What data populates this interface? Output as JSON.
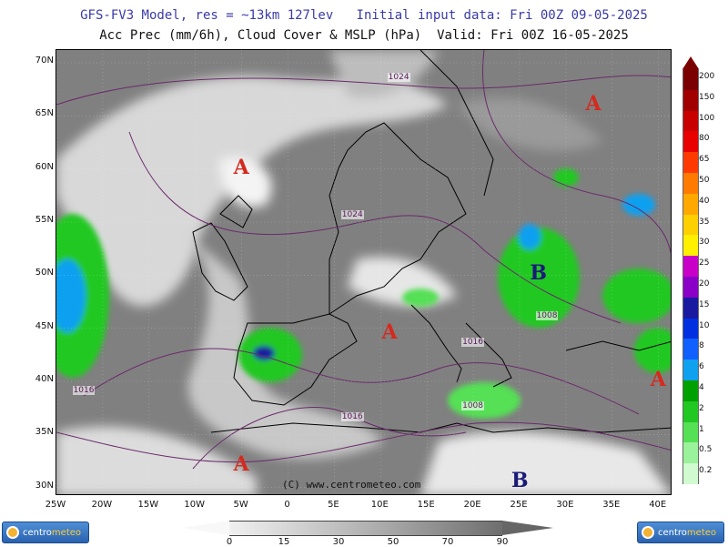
{
  "header": {
    "line1": "GFS-FV3 Model, res = ~13km 127lev   Initial input data: Fri 00Z 09-05-2025",
    "line2": "Acc Prec (mm/6h), Cloud Cover & MSLP (hPa)  Valid: Fri 00Z 16-05-2025"
  },
  "map": {
    "lat_labels": [
      "70N",
      "65N",
      "60N",
      "55N",
      "50N",
      "45N",
      "40N",
      "35N",
      "30N"
    ],
    "lon_labels": [
      "25W",
      "20W",
      "15W",
      "10W",
      "5W",
      "0",
      "5E",
      "10E",
      "15E",
      "20E",
      "25E",
      "30E",
      "35E",
      "40E"
    ],
    "copyright": "(C) www.centrometeo.com",
    "pressure_centers": [
      {
        "letter": "A",
        "type": "high",
        "lat": 66,
        "lon": 33
      },
      {
        "letter": "A",
        "type": "high",
        "lat": 60,
        "lon": -5
      },
      {
        "letter": "A",
        "type": "high",
        "lat": 44.5,
        "lon": 11
      },
      {
        "letter": "A",
        "type": "high",
        "lat": 40,
        "lon": 40
      },
      {
        "letter": "A",
        "type": "high",
        "lat": 32,
        "lon": -5
      },
      {
        "letter": "B",
        "type": "low",
        "lat": 50,
        "lon": 27
      },
      {
        "letter": "B",
        "type": "low",
        "lat": 30.5,
        "lon": 25
      }
    ],
    "isobar_labels": [
      {
        "text": "1024",
        "lat": 68.5,
        "lon": 12
      },
      {
        "text": "1024",
        "lat": 55.5,
        "lon": 7
      },
      {
        "text": "1008",
        "lat": 46,
        "lon": 28
      },
      {
        "text": "1016",
        "lat": 43.5,
        "lon": 20
      },
      {
        "text": "1016",
        "lat": 39,
        "lon": -22
      },
      {
        "text": "1008",
        "lat": 37.5,
        "lon": 20
      },
      {
        "text": "1016",
        "lat": 36.5,
        "lon": 7
      }
    ],
    "colors": {
      "high": "#d42a1e",
      "low": "#1a1a7a",
      "isobar": "#6b2a6b"
    }
  },
  "precip_legend": {
    "title": "Acc Prec (mm/6h)",
    "levels": [
      {
        "label": "200",
        "color": "#7a0000"
      },
      {
        "label": "150",
        "color": "#a00000"
      },
      {
        "label": "100",
        "color": "#c80000"
      },
      {
        "label": "80",
        "color": "#e80000"
      },
      {
        "label": "65",
        "color": "#ff3a00"
      },
      {
        "label": "50",
        "color": "#ff7a00"
      },
      {
        "label": "40",
        "color": "#ffa800"
      },
      {
        "label": "35",
        "color": "#ffd000"
      },
      {
        "label": "30",
        "color": "#fff000"
      },
      {
        "label": "25",
        "color": "#c800c8"
      },
      {
        "label": "20",
        "color": "#8a00c8"
      },
      {
        "label": "15",
        "color": "#1a1aa0"
      },
      {
        "label": "10",
        "color": "#0030e0"
      },
      {
        "label": "8",
        "color": "#1060ff"
      },
      {
        "label": "6",
        "color": "#10a0f0"
      },
      {
        "label": "4",
        "color": "#00a000"
      },
      {
        "label": "2",
        "color": "#22c822"
      },
      {
        "label": "1",
        "color": "#55e055"
      },
      {
        "label": "0.5",
        "color": "#9af29a"
      },
      {
        "label": "0.2",
        "color": "#d0fad0"
      }
    ]
  },
  "cloud_legend": {
    "labels": [
      "0",
      "15",
      "30",
      "50",
      "70",
      "90"
    ],
    "colors": [
      "#f0f0f0",
      "#d8d8d8",
      "#bfbfbf",
      "#a5a5a5",
      "#8a8a8a",
      "#6e6e6e"
    ]
  },
  "logos": {
    "left_text_a": "centro",
    "left_text_b": "meteo",
    "right_text_a": "centro",
    "right_text_b": "meteo"
  }
}
